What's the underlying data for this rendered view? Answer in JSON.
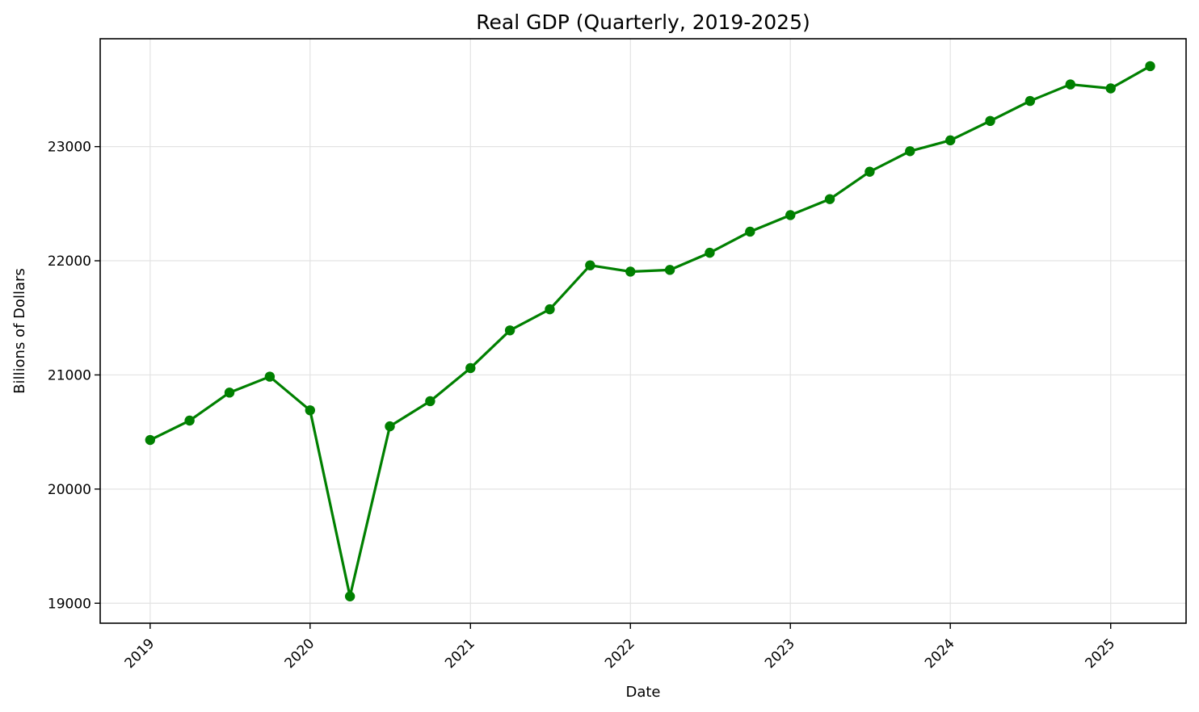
{
  "chart_data": {
    "type": "line",
    "title": "Real GDP (Quarterly, 2019-2025)",
    "xlabel": "Date",
    "ylabel": "Billions of Dollars",
    "x": [
      "2019-01-01",
      "2019-04-01",
      "2019-07-01",
      "2019-10-01",
      "2020-01-01",
      "2020-04-01",
      "2020-07-01",
      "2020-10-01",
      "2021-01-01",
      "2021-04-01",
      "2021-07-01",
      "2021-10-01",
      "2022-01-01",
      "2022-04-01",
      "2022-07-01",
      "2022-10-01",
      "2023-01-01",
      "2023-04-01",
      "2023-07-01",
      "2023-10-01",
      "2024-01-01",
      "2024-04-01",
      "2024-07-01",
      "2024-10-01",
      "2025-01-01",
      "2025-04-01"
    ],
    "series": [
      {
        "name": "",
        "color": "#008000",
        "marker": "circle",
        "values": [
          20430,
          20600,
          20845,
          20985,
          20690,
          19060,
          20550,
          20770,
          21060,
          21390,
          21575,
          21960,
          21905,
          21920,
          22070,
          22255,
          22400,
          22540,
          22780,
          22960,
          23055,
          23225,
          23400,
          23545,
          23510,
          23705
        ]
      }
    ],
    "x_ticks": [
      "2019",
      "2020",
      "2021",
      "2022",
      "2023",
      "2024",
      "2025"
    ],
    "y_ticks": [
      19000,
      20000,
      21000,
      22000,
      23000
    ],
    "x_range": [
      "2018-09-09",
      "2025-06-22"
    ],
    "ylim": [
      18825,
      23945
    ],
    "grid": true,
    "legend": "none"
  }
}
